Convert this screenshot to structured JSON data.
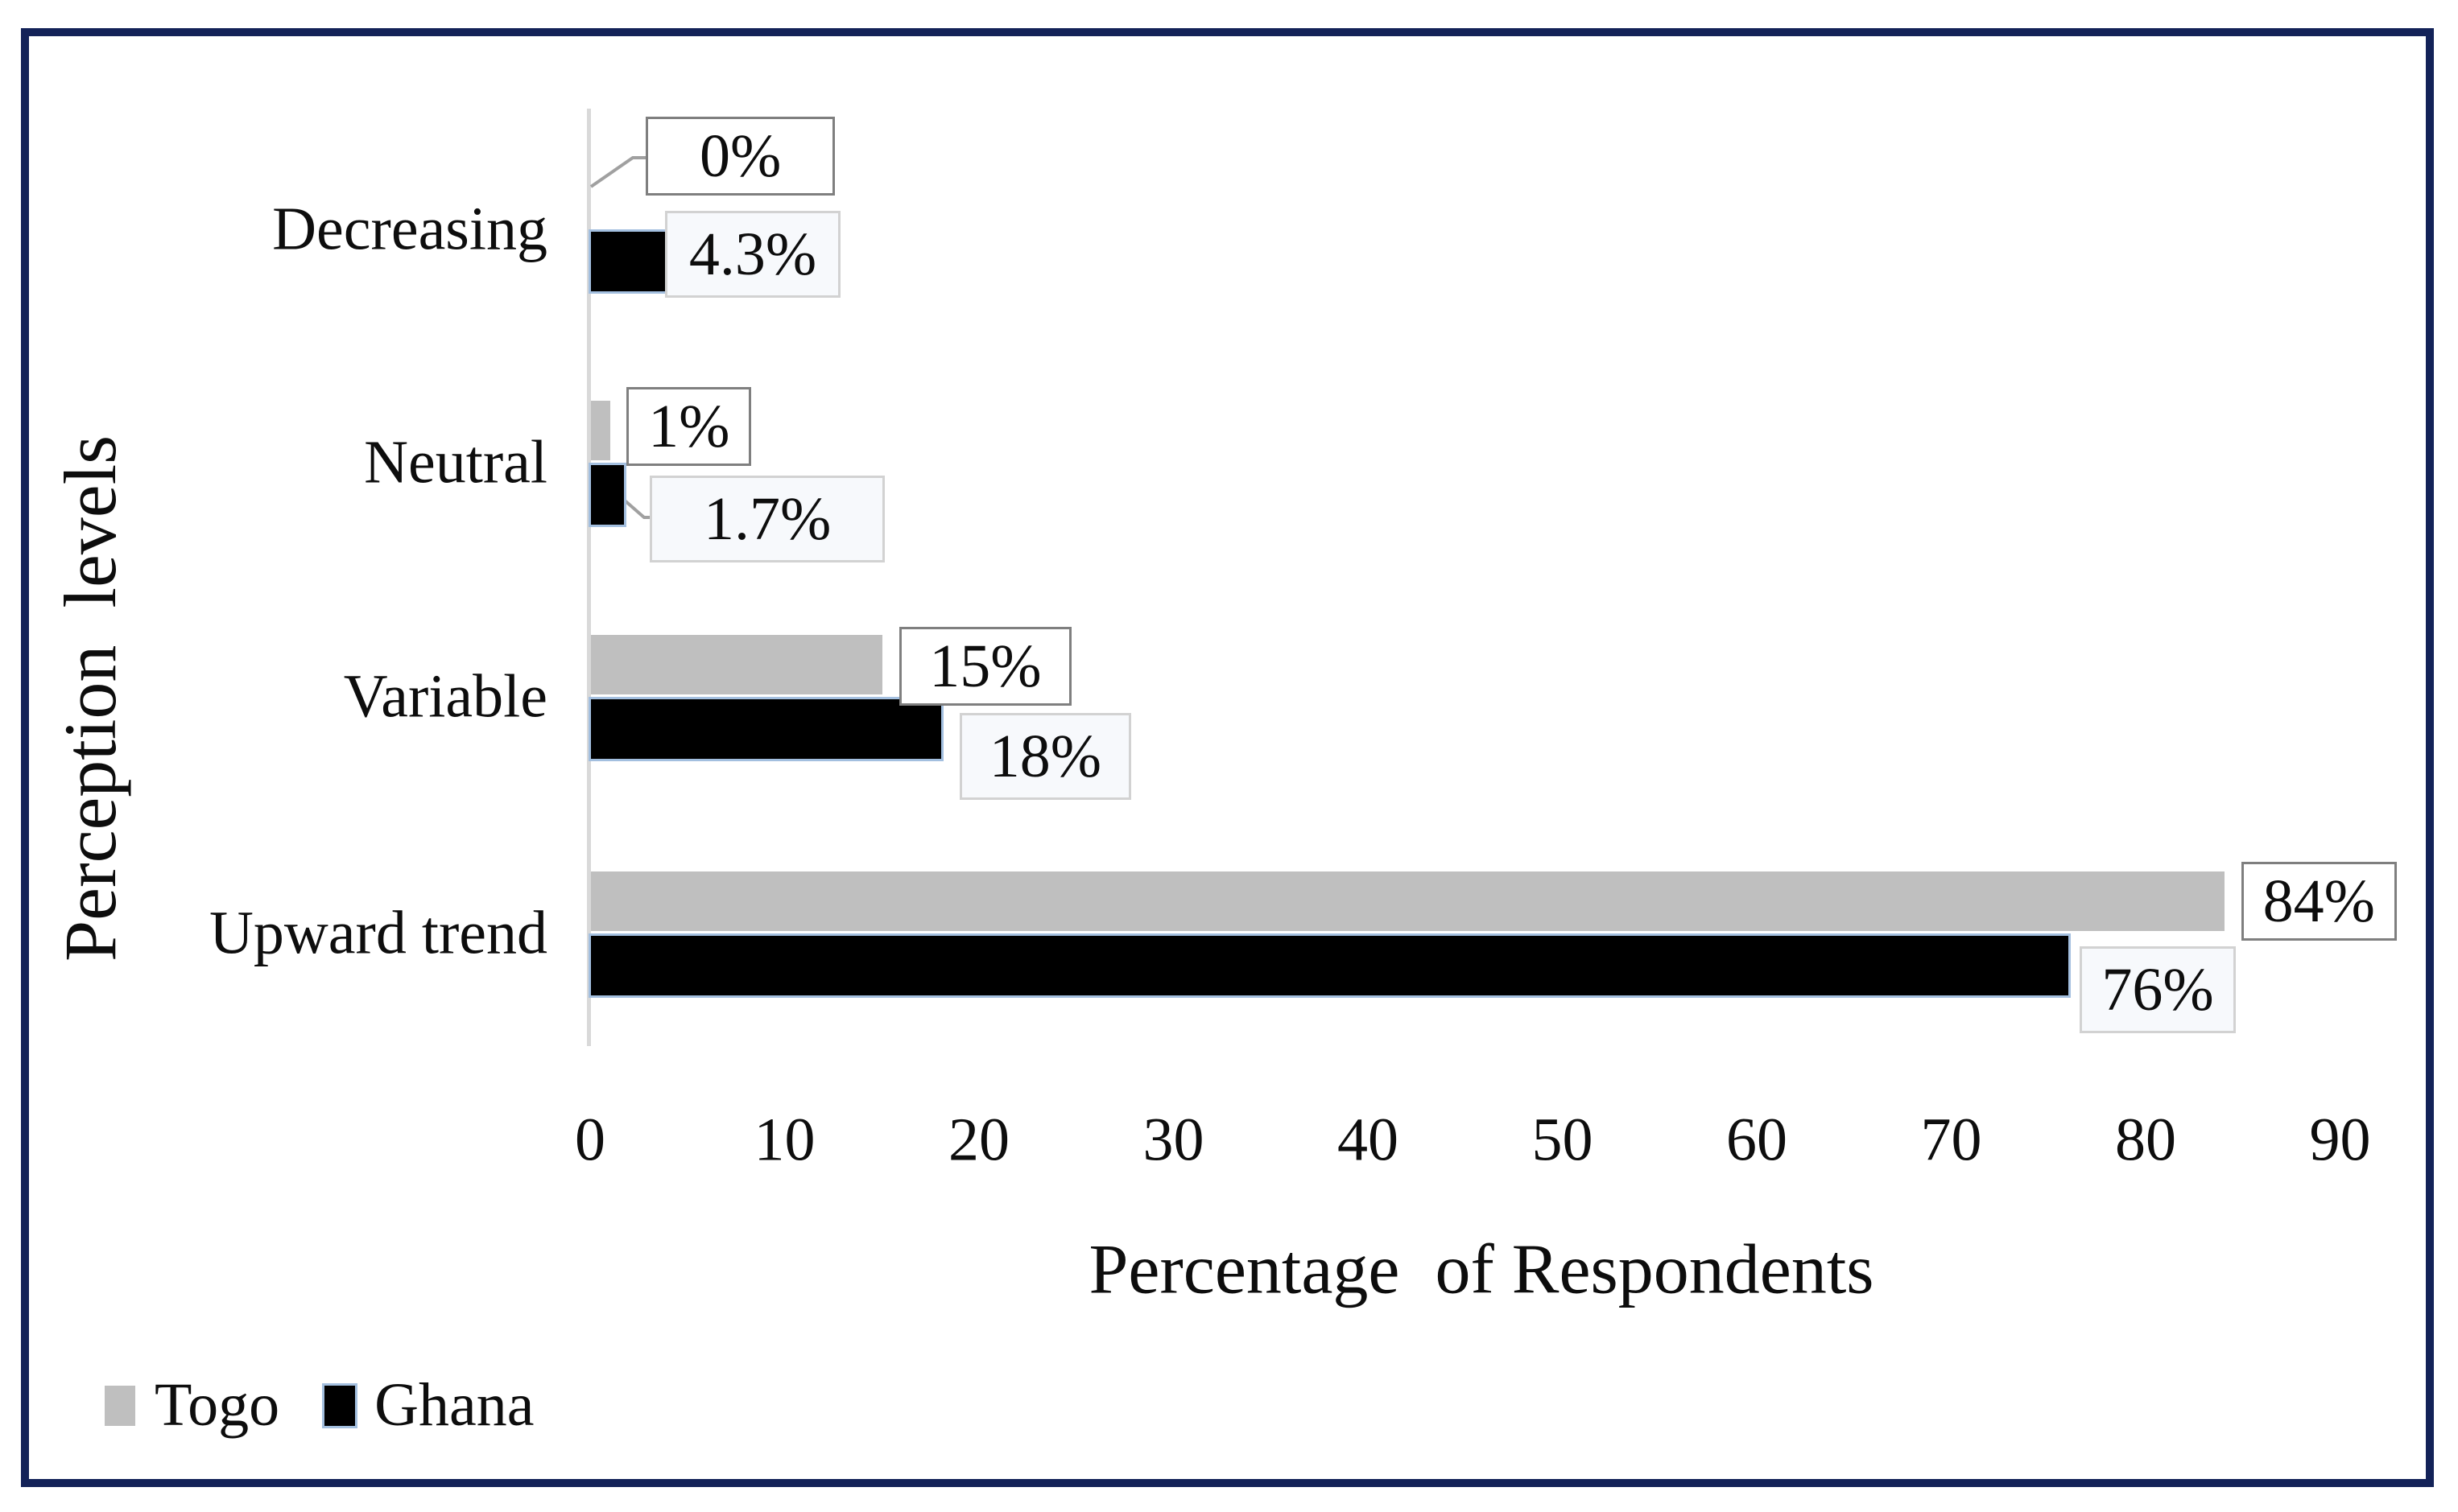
{
  "frame": {
    "border_color": "#132258",
    "background": "#ffffff"
  },
  "chart_data": {
    "type": "bar",
    "orientation": "horizontal",
    "title": "",
    "xlabel": "Percentage  of Respondents",
    "ylabel": "Perception  levels",
    "categories": [
      "Decreasing",
      "Neutral",
      "Variable",
      "Upward trend"
    ],
    "series": [
      {
        "name": "Togo",
        "color": "#bfbfbf",
        "values": [
          0,
          1,
          15,
          84
        ],
        "data_labels": [
          "0%",
          "1%",
          "15%",
          "84%"
        ],
        "label_box": {
          "border": "#7f7f7f",
          "fill": "#ffffff"
        }
      },
      {
        "name": "Ghana",
        "color": "#000000",
        "bar_outline": "#a3bfdf",
        "values": [
          4.3,
          1.7,
          18,
          76
        ],
        "data_labels": [
          "4.3%",
          "1.7%",
          "18%",
          "76%"
        ],
        "label_box": {
          "border": "#d2d2d2",
          "fill": "#f7f9fc"
        }
      }
    ],
    "x_ticks": [
      "0",
      "10",
      "20",
      "30",
      "40",
      "50",
      "60",
      "70",
      "80",
      "90"
    ],
    "xlim": [
      0,
      94
    ],
    "grid": false,
    "legend": {
      "position": "bottom-left",
      "entries": [
        "Togo",
        "Ghana"
      ]
    },
    "styles": {
      "axis_line_color": "#d9d9d9",
      "leader_line_color": "#a0a0a0",
      "text_color": "#0d0d0d"
    }
  }
}
